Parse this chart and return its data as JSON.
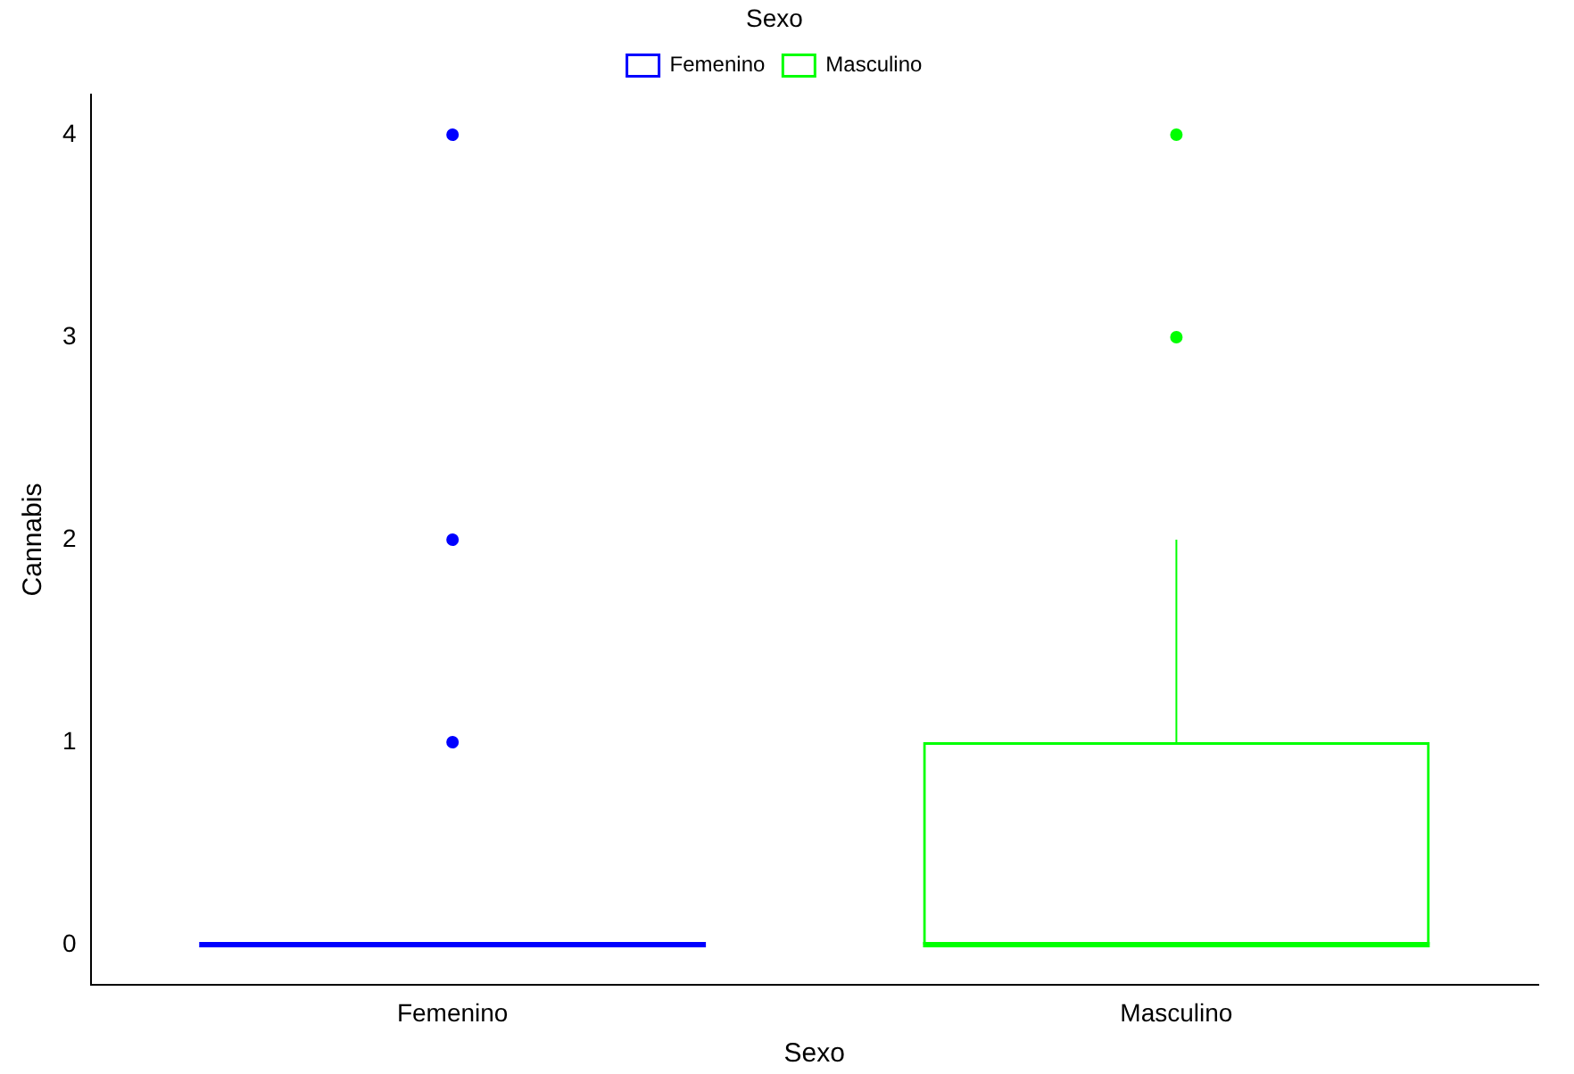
{
  "chart_data": {
    "type": "box",
    "xlabel": "Sexo",
    "ylabel": "Cannabis",
    "legend_title": "Sexo",
    "legend": "top",
    "grid": false,
    "marker": "circle",
    "categories": [
      "Femenino",
      "Masculino"
    ],
    "ylim": [
      -0.2,
      4.2
    ],
    "yticks": [
      0,
      1,
      2,
      3,
      4
    ],
    "series": [
      {
        "name": "Femenino",
        "color": "#0000ff",
        "boxes": [
          {
            "low": 0,
            "q1": 0,
            "median": 0,
            "q3": 0,
            "high": 0,
            "outliers": [
              1,
              2,
              4
            ]
          },
          null
        ]
      },
      {
        "name": "Masculino",
        "color": "#00ff00",
        "boxes": [
          null,
          {
            "low": 0,
            "q1": 0,
            "median": 0,
            "q3": 1,
            "high": 2,
            "outliers": [
              3,
              4
            ]
          }
        ]
      }
    ]
  }
}
